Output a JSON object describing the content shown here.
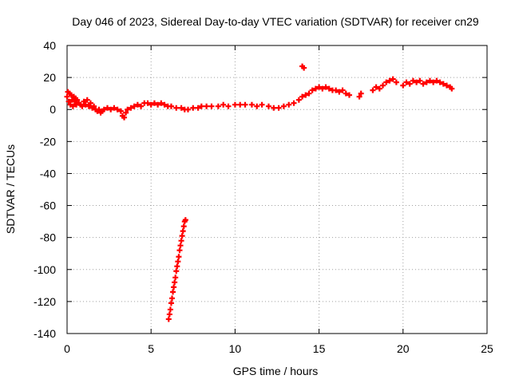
{
  "chart_data": {
    "type": "scatter",
    "title": "Day 046 of 2023, Sidereal Day-to-day VTEC variation (SDTVAR) for receiver cn29",
    "xlabel": "GPS time / hours",
    "ylabel": "SDTVAR / TECUs",
    "xlim": [
      0,
      25
    ],
    "ylim": [
      -140,
      40
    ],
    "x_ticks": [
      0,
      5,
      10,
      15,
      20,
      25
    ],
    "y_ticks": [
      -140,
      -120,
      -100,
      -80,
      -60,
      -40,
      -20,
      0,
      20,
      40
    ],
    "grid": true,
    "marker": "plus",
    "color": "#ff0000",
    "series": [
      {
        "name": "SDTVAR",
        "points": [
          [
            0.0,
            8
          ],
          [
            0.05,
            11
          ],
          [
            0.1,
            5
          ],
          [
            0.15,
            10
          ],
          [
            0.2,
            3
          ],
          [
            0.25,
            9
          ],
          [
            0.3,
            6
          ],
          [
            0.35,
            2
          ],
          [
            0.4,
            8
          ],
          [
            0.45,
            5
          ],
          [
            0.5,
            7
          ],
          [
            0.55,
            3
          ],
          [
            0.6,
            6
          ],
          [
            0.7,
            4
          ],
          [
            0.8,
            3
          ],
          [
            0.9,
            2
          ],
          [
            1.0,
            5
          ],
          [
            1.1,
            3
          ],
          [
            1.2,
            6
          ],
          [
            1.3,
            2
          ],
          [
            1.4,
            4
          ],
          [
            1.5,
            1
          ],
          [
            1.6,
            2
          ],
          [
            1.7,
            0
          ],
          [
            1.8,
            -1
          ],
          [
            1.9,
            0
          ],
          [
            2.0,
            -2
          ],
          [
            2.1,
            -1
          ],
          [
            2.2,
            0
          ],
          [
            2.4,
            1
          ],
          [
            2.6,
            0
          ],
          [
            2.8,
            1
          ],
          [
            3.0,
            0
          ],
          [
            3.2,
            -1
          ],
          [
            3.3,
            -4
          ],
          [
            3.4,
            -5
          ],
          [
            3.5,
            -2
          ],
          [
            3.6,
            0
          ],
          [
            3.8,
            1
          ],
          [
            4.0,
            2
          ],
          [
            4.2,
            3
          ],
          [
            4.4,
            2
          ],
          [
            4.6,
            4
          ],
          [
            4.8,
            4
          ],
          [
            5.0,
            3
          ],
          [
            5.2,
            4
          ],
          [
            5.4,
            3
          ],
          [
            5.6,
            4
          ],
          [
            5.8,
            3
          ],
          [
            6.0,
            2
          ],
          [
            6.2,
            2
          ],
          [
            6.5,
            1
          ],
          [
            6.8,
            1
          ],
          [
            7.0,
            0
          ],
          [
            7.2,
            0
          ],
          [
            7.5,
            1
          ],
          [
            7.8,
            1
          ],
          [
            8.0,
            2
          ],
          [
            8.3,
            2
          ],
          [
            8.6,
            2
          ],
          [
            9.0,
            2
          ],
          [
            9.3,
            3
          ],
          [
            9.6,
            2
          ],
          [
            10.0,
            3
          ],
          [
            10.3,
            3
          ],
          [
            10.6,
            3
          ],
          [
            11.0,
            3
          ],
          [
            11.3,
            2
          ],
          [
            11.6,
            3
          ],
          [
            12.0,
            2
          ],
          [
            12.3,
            1
          ],
          [
            12.6,
            1
          ],
          [
            12.9,
            2
          ],
          [
            13.2,
            3
          ],
          [
            13.5,
            4
          ],
          [
            13.8,
            6
          ],
          [
            14.0,
            8
          ],
          [
            14.2,
            9
          ],
          [
            14.4,
            10
          ],
          [
            14.6,
            12
          ],
          [
            14.8,
            13
          ],
          [
            15.0,
            14
          ],
          [
            15.2,
            13
          ],
          [
            15.4,
            14
          ],
          [
            15.6,
            13
          ],
          [
            15.8,
            12
          ],
          [
            16.0,
            12
          ],
          [
            16.2,
            11
          ],
          [
            16.4,
            12
          ],
          [
            16.6,
            10
          ],
          [
            16.8,
            9
          ],
          [
            17.4,
            8
          ],
          [
            17.5,
            10
          ],
          [
            18.2,
            12
          ],
          [
            18.4,
            14
          ],
          [
            18.6,
            13
          ],
          [
            18.8,
            15
          ],
          [
            19.0,
            17
          ],
          [
            19.2,
            18
          ],
          [
            19.4,
            19
          ],
          [
            19.6,
            17
          ],
          [
            20.0,
            15
          ],
          [
            20.2,
            17
          ],
          [
            20.4,
            16
          ],
          [
            20.6,
            18
          ],
          [
            20.8,
            17
          ],
          [
            21.0,
            18
          ],
          [
            21.2,
            16
          ],
          [
            21.4,
            17
          ],
          [
            21.6,
            18
          ],
          [
            21.8,
            17
          ],
          [
            22.0,
            18
          ],
          [
            22.2,
            17
          ],
          [
            22.4,
            16
          ],
          [
            22.6,
            15
          ],
          [
            22.8,
            14
          ],
          [
            22.9,
            13
          ],
          [
            14.0,
            27
          ],
          [
            14.1,
            26
          ],
          [
            6.05,
            -131
          ],
          [
            6.1,
            -128
          ],
          [
            6.15,
            -125
          ],
          [
            6.2,
            -121
          ],
          [
            6.25,
            -118
          ],
          [
            6.3,
            -114
          ],
          [
            6.35,
            -111
          ],
          [
            6.4,
            -108
          ],
          [
            6.45,
            -105
          ],
          [
            6.5,
            -101
          ],
          [
            6.55,
            -98
          ],
          [
            6.6,
            -95
          ],
          [
            6.65,
            -92
          ],
          [
            6.7,
            -88
          ],
          [
            6.75,
            -85
          ],
          [
            6.8,
            -82
          ],
          [
            6.85,
            -79
          ],
          [
            6.9,
            -76
          ],
          [
            6.95,
            -73
          ],
          [
            7.0,
            -70
          ],
          [
            7.05,
            -69
          ]
        ]
      }
    ]
  }
}
